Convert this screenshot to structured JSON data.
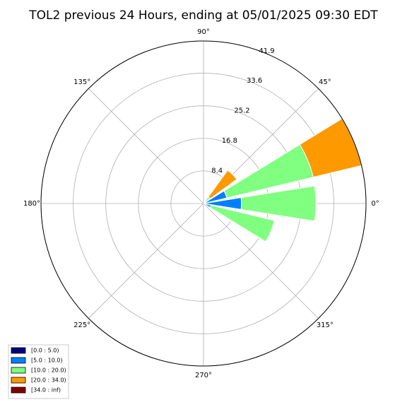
{
  "chart_data": {
    "type": "windrose",
    "title": "TOL2 previous 24 Hours, ending at 05/01/2025 09:30 EDT",
    "directions": [
      0,
      22.5,
      45,
      337.5
    ],
    "series": [
      {
        "name": "[0.0 : 5.0)",
        "color": "#000080",
        "values": [
          0,
          0,
          0,
          0
        ]
      },
      {
        "name": "[5.0 : 10.0)",
        "color": "#0080ff",
        "values": [
          9.8,
          6.2,
          0.6,
          2
        ]
      },
      {
        "name": "[10.0 : 20.0)",
        "color": "#80ff80",
        "values": [
          19.2,
          22.9,
          1.5,
          16.8
        ]
      },
      {
        "name": "[20.0 : 34.0)",
        "color": "#ff9900",
        "values": [
          0,
          12.8,
          8.5,
          0
        ]
      },
      {
        "name": "[34.0 : inf)",
        "color": "#800000",
        "values": [
          0,
          0,
          0,
          0
        ]
      }
    ],
    "rlim": [
      0,
      41.9
    ],
    "rticks": [
      8.4,
      16.8,
      25.2,
      33.6,
      41.9
    ],
    "thetaticks": [
      {
        "value": 0,
        "label": "0°"
      },
      {
        "value": 45,
        "label": "45°"
      },
      {
        "value": 90,
        "label": "90°"
      },
      {
        "value": 135,
        "label": "135°"
      },
      {
        "value": 180,
        "label": "180°"
      },
      {
        "value": 225,
        "label": "225°"
      },
      {
        "value": 270,
        "label": "270°"
      },
      {
        "value": 315,
        "label": "315°"
      }
    ],
    "grid": true,
    "legend": "lower left"
  }
}
